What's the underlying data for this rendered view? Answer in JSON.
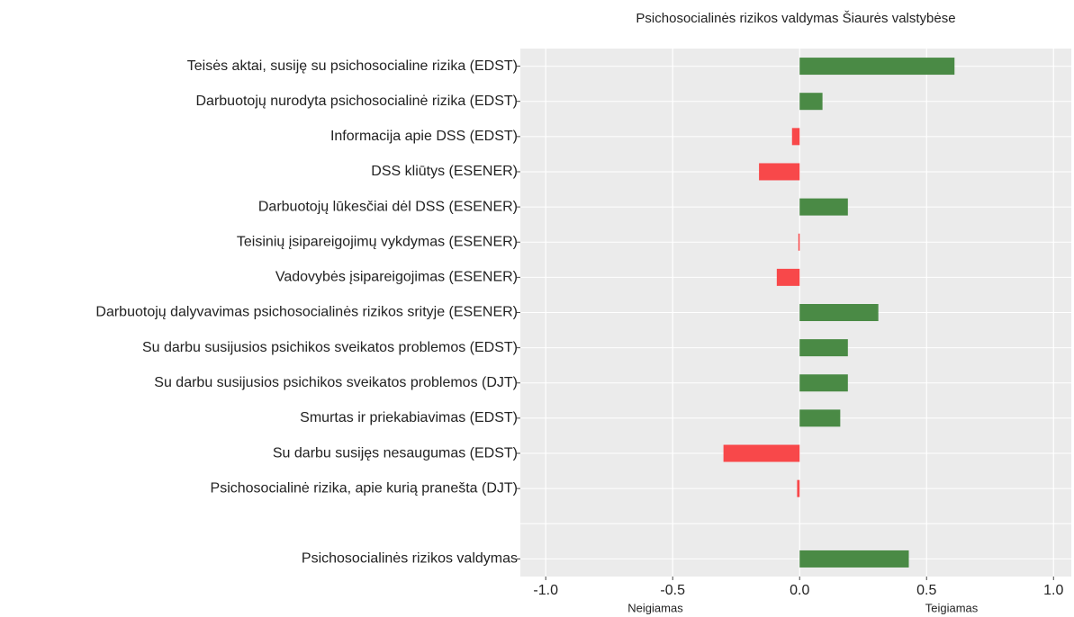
{
  "chart_data": {
    "type": "bar",
    "orientation": "horizontal",
    "title": "Psichosocialinės rizikos valdymas Šiaurės valstybėse",
    "categories": [
      "Teisės aktai, susiję su psichosocialine rizika (EDST)",
      "Darbuotojų nurodyta psichosocialinė rizika (EDST)",
      "Informacija apie DSS (EDST)",
      "DSS kliūtys (ESENER)",
      "Darbuotojų lūkesčiai dėl DSS (ESENER)",
      "Teisinių įsipareigojimų vykdymas (ESENER)",
      "Vadovybės įsipareigojimas (ESENER)",
      "Darbuotojų dalyvavimas  psichosocialinės rizikos srityje (ESENER)",
      "Su darbu susijusios psichikos sveikatos problemos (EDST)",
      "Su darbu susijusios psichikos sveikatos problemos (DJT)",
      "Smurtas ir priekabiavimas (EDST)",
      "Su darbu susijęs nesaugumas (EDST)",
      "Psichosocialinė rizika, apie kurią pranešta (DJT)",
      null,
      "Psichosocialinės rizikos valdymas"
    ],
    "values": [
      0.61,
      0.09,
      -0.03,
      -0.16,
      0.19,
      -0.005,
      -0.09,
      0.31,
      0.19,
      0.19,
      0.16,
      -0.3,
      -0.01,
      null,
      0.43
    ],
    "colors": {
      "positive": "#4a8a45",
      "negative": "#f8484a"
    },
    "xlim": [
      -1.1,
      1.07
    ],
    "xticks": [
      {
        "value": -1,
        "label": "-1.0"
      },
      {
        "value": -0.5,
        "label": "-0.5"
      },
      {
        "value": 0,
        "label": "0.0"
      },
      {
        "value": 0.5,
        "label": "0.5"
      },
      {
        "value": 1,
        "label": "1.0"
      }
    ],
    "negative_label": "Neigiamas",
    "positive_label": "Teigiamas",
    "grid": true
  }
}
